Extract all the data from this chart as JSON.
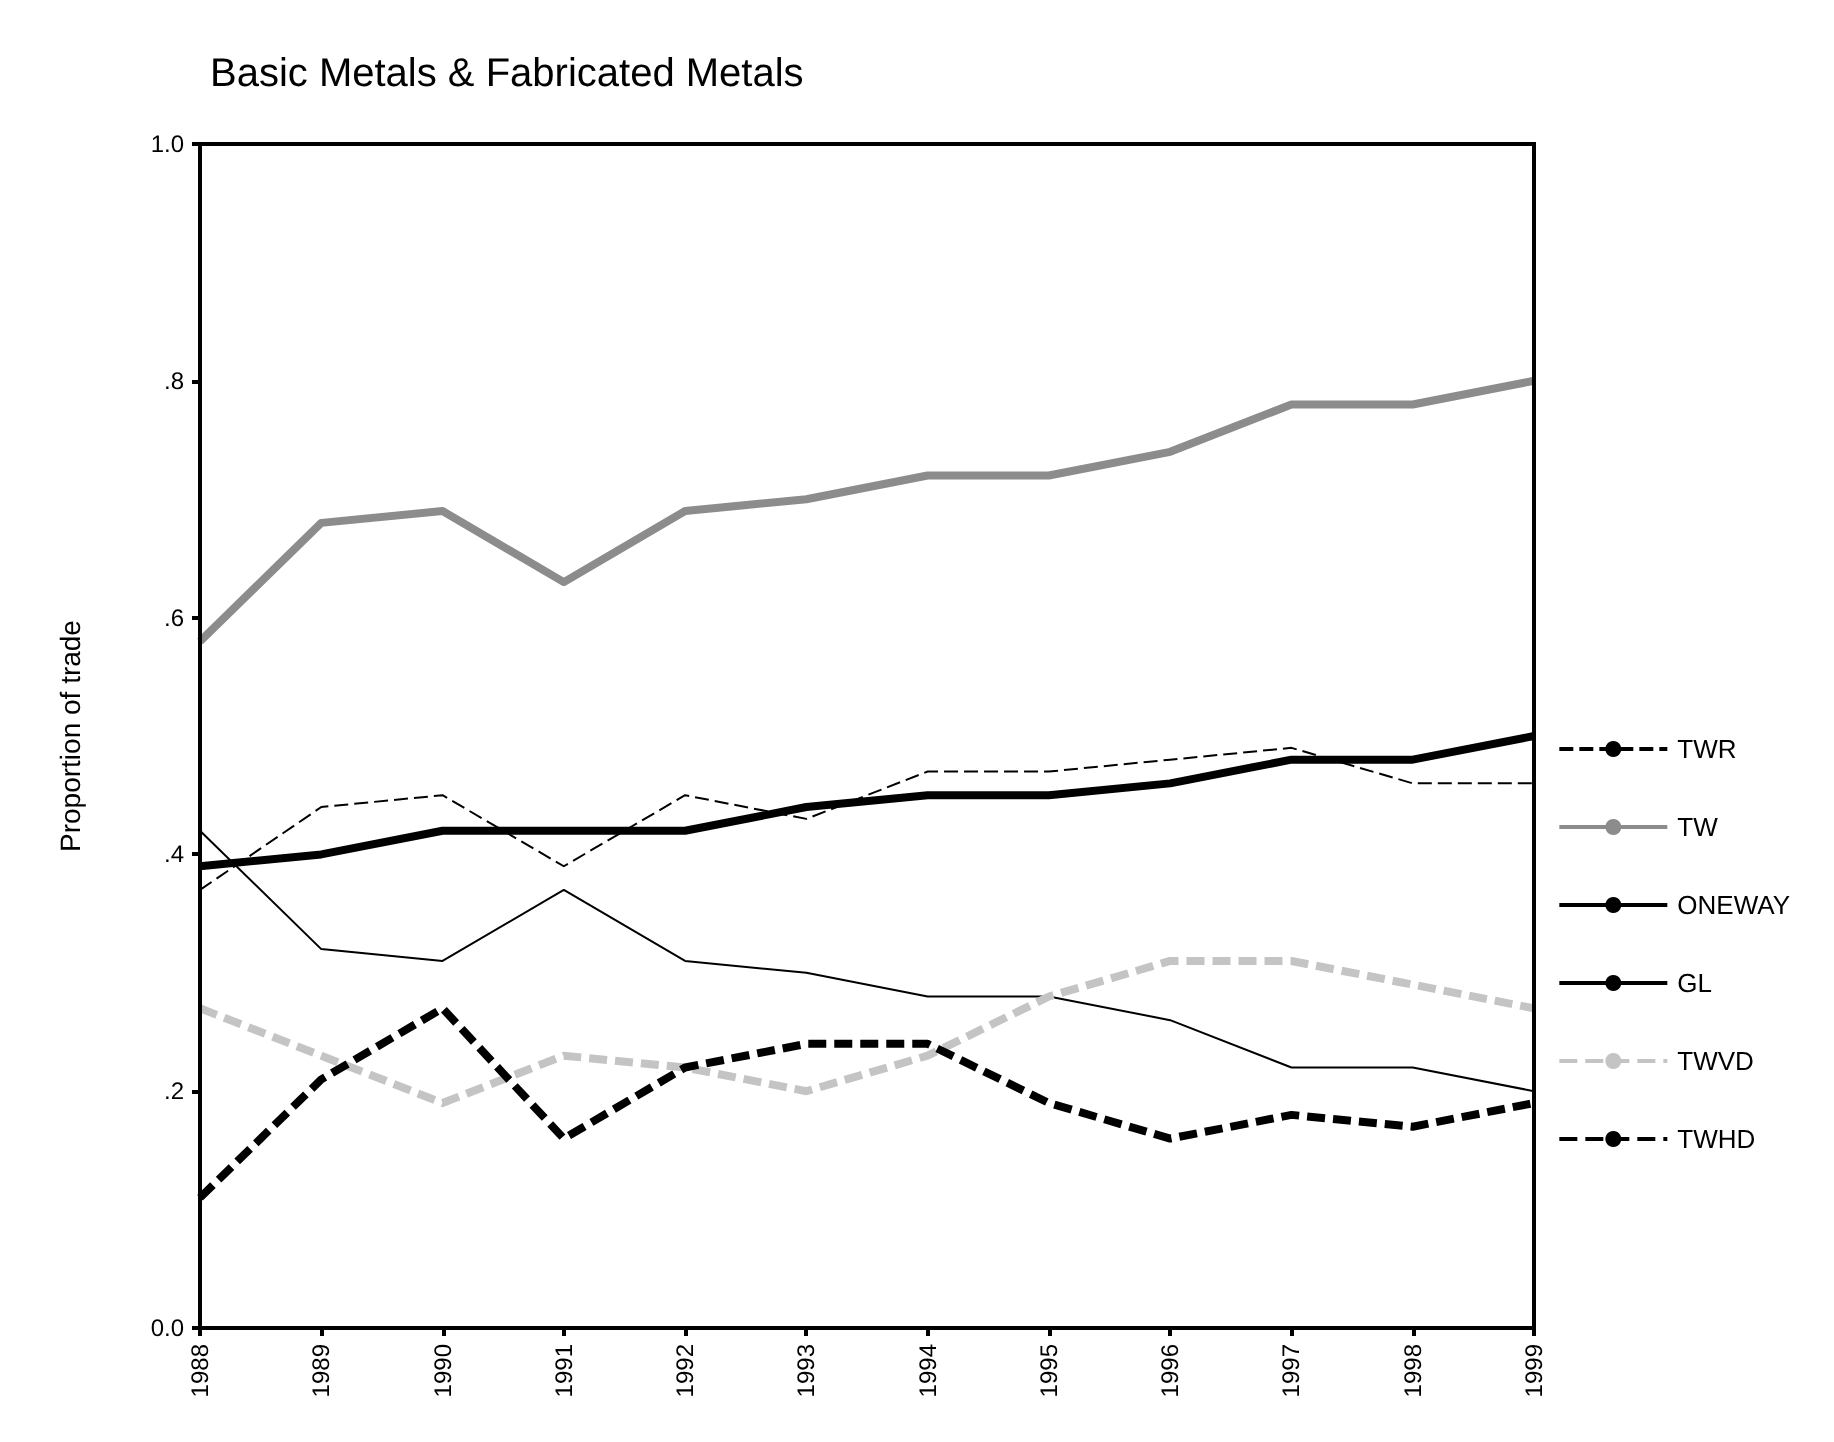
{
  "chart_data": {
    "type": "line",
    "title": "Basic Metals & Fabricated Metals",
    "ylabel": "Proportion of trade",
    "categories": [
      "1988",
      "1989",
      "1990",
      "1991",
      "1992",
      "1993",
      "1994",
      "1995",
      "1996",
      "1997",
      "1998",
      "1999"
    ],
    "series": [
      {
        "name": "TWR",
        "color": "#000000",
        "line_style": "dashed",
        "values": [
          0.37,
          0.44,
          0.45,
          0.39,
          0.45,
          0.43,
          0.47,
          0.47,
          0.48,
          0.49,
          0.46,
          0.46
        ]
      },
      {
        "name": "TW",
        "color": "#8c8c8c",
        "line_style": "solid",
        "values": [
          0.58,
          0.68,
          0.69,
          0.63,
          0.69,
          0.7,
          0.72,
          0.72,
          0.74,
          0.78,
          0.78,
          0.8
        ]
      },
      {
        "name": "ONEWAY",
        "color": "#000000",
        "line_style": "solid",
        "values": [
          0.42,
          0.32,
          0.31,
          0.37,
          0.31,
          0.3,
          0.28,
          0.28,
          0.26,
          0.22,
          0.22,
          0.2
        ]
      },
      {
        "name": "GL",
        "color": "#000000",
        "line_style": "solid",
        "values": [
          0.39,
          0.4,
          0.42,
          0.42,
          0.42,
          0.44,
          0.45,
          0.45,
          0.46,
          0.48,
          0.48,
          0.5
        ]
      },
      {
        "name": "TWVD",
        "color": "#c4c4c4",
        "line_style": "dashed",
        "values": [
          0.27,
          0.23,
          0.19,
          0.23,
          0.22,
          0.2,
          0.23,
          0.28,
          0.31,
          0.31,
          0.29,
          0.27
        ]
      },
      {
        "name": "TWHD",
        "color": "#000000",
        "line_style": "dashed",
        "values": [
          0.11,
          0.21,
          0.27,
          0.16,
          0.22,
          0.24,
          0.24,
          0.19,
          0.16,
          0.18,
          0.17,
          0.19
        ]
      }
    ],
    "ylim": [
      0,
      1
    ],
    "yticks": [
      {
        "value": 0,
        "label": "0.0"
      },
      {
        "value": 0.2,
        "label": ".2"
      },
      {
        "value": 0.4,
        "label": ".4"
      },
      {
        "value": 0.6,
        "label": ".6"
      },
      {
        "value": 0.8,
        "label": ".8"
      },
      {
        "value": 1,
        "label": "1.0"
      }
    ],
    "grid": false,
    "legend": "right",
    "marker": "none"
  }
}
